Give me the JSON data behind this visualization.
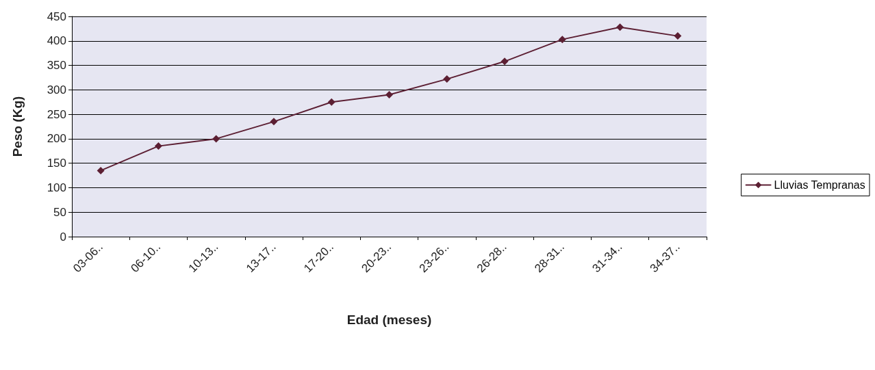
{
  "chart_data": {
    "type": "line",
    "xlabel": "Edad (meses)",
    "ylabel": "Peso (Kg)",
    "categories": [
      "03-06..",
      "06-10..",
      "10-13..",
      "13-17..",
      "17-20..",
      "20-23..",
      "23-26..",
      "26-28..",
      "28-31..",
      "31-34..",
      "34-37.."
    ],
    "series": [
      {
        "name": "Lluvias Tempranas",
        "color": "#5c1f33",
        "values": [
          135,
          185,
          200,
          235,
          275,
          290,
          322,
          358,
          403,
          428,
          410
        ]
      }
    ],
    "ylim": [
      0,
      450
    ],
    "yticks": [
      0,
      50,
      100,
      150,
      200,
      250,
      300,
      350,
      400,
      450
    ],
    "grid": "y",
    "legend": "right",
    "marker": "diamond",
    "line_style": "solid"
  }
}
